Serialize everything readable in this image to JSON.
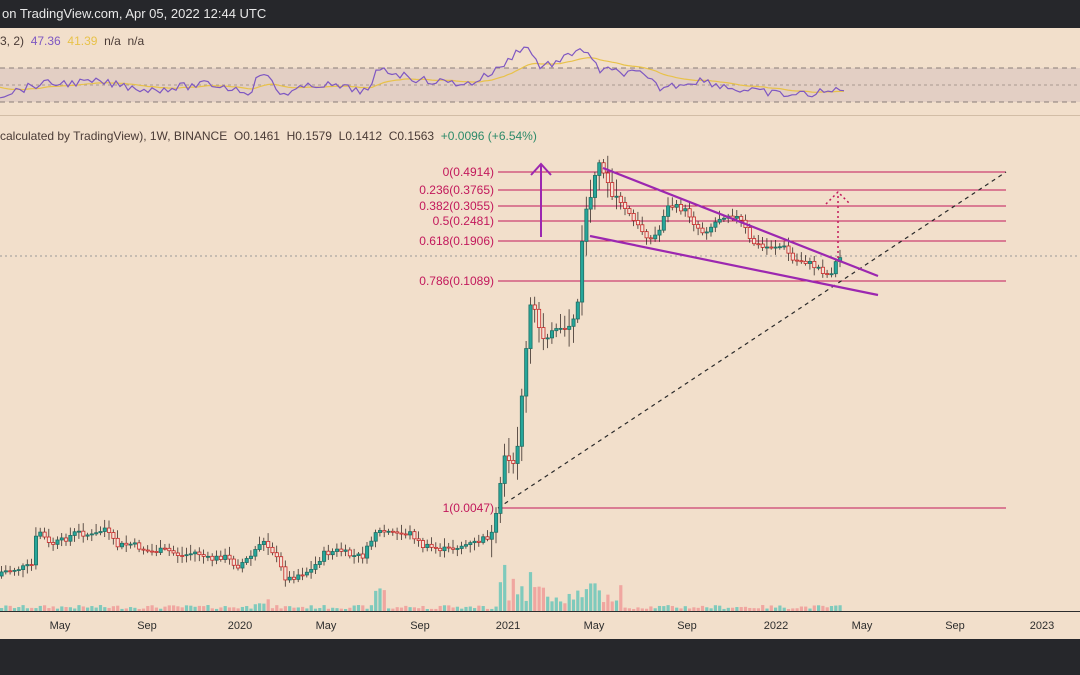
{
  "header": {
    "text": "on TradingView.com, Apr 05, 2022 12:44 UTC"
  },
  "rsi_legend": {
    "params": "3, 2)",
    "value1": "47.36",
    "value2": "41.39",
    "value3": "n/a",
    "value4": "n/a"
  },
  "main_legend": {
    "source": "calculated by TradingView), 1W, BINANCE",
    "open": "O0.1461",
    "high": "H0.1579",
    "low": "L0.1412",
    "close": "C0.1563",
    "change": "+0.0096 (+6.54%)"
  },
  "colors": {
    "background": "#f2dfcb",
    "up": "#26a69a",
    "down": "#ef5350",
    "fib": "#c2185b",
    "wedge": "#9c27b0",
    "rsi_line": "#7e57c2",
    "rsi_ma": "#e8c24a",
    "volume_up": "#7fcabc",
    "volume_down": "#f0a6a0"
  },
  "chart_data": {
    "type": "candlestick",
    "interval": "1W",
    "exchange": "BINANCE",
    "x_ticks": [
      "May",
      "Sep",
      "2020",
      "May",
      "Sep",
      "2021",
      "May",
      "Sep",
      "2022",
      "May",
      "Sep",
      "2023"
    ],
    "fib_levels": [
      {
        "label": "0(0.4914)",
        "value": 0.4914
      },
      {
        "label": "0.236(0.3765)",
        "value": 0.3765
      },
      {
        "label": "0.382(0.3055)",
        "value": 0.3055
      },
      {
        "label": "0.5(0.2481)",
        "value": 0.2481
      },
      {
        "label": "0.618(0.1906)",
        "value": 0.1906
      },
      {
        "label": "0.786(0.1089)",
        "value": 0.1089
      },
      {
        "label": "1(0.0047)",
        "value": 0.0047
      }
    ],
    "last_candle": {
      "open": 0.1461,
      "high": 0.1579,
      "low": 0.1412,
      "close": 0.1563
    },
    "rsi": {
      "value": 47.36,
      "ma": 41.39,
      "levels": [
        30,
        50,
        70
      ]
    },
    "annotations": [
      "falling wedge",
      "ascending trendline",
      "up arrow",
      "dotted target arrow"
    ]
  }
}
